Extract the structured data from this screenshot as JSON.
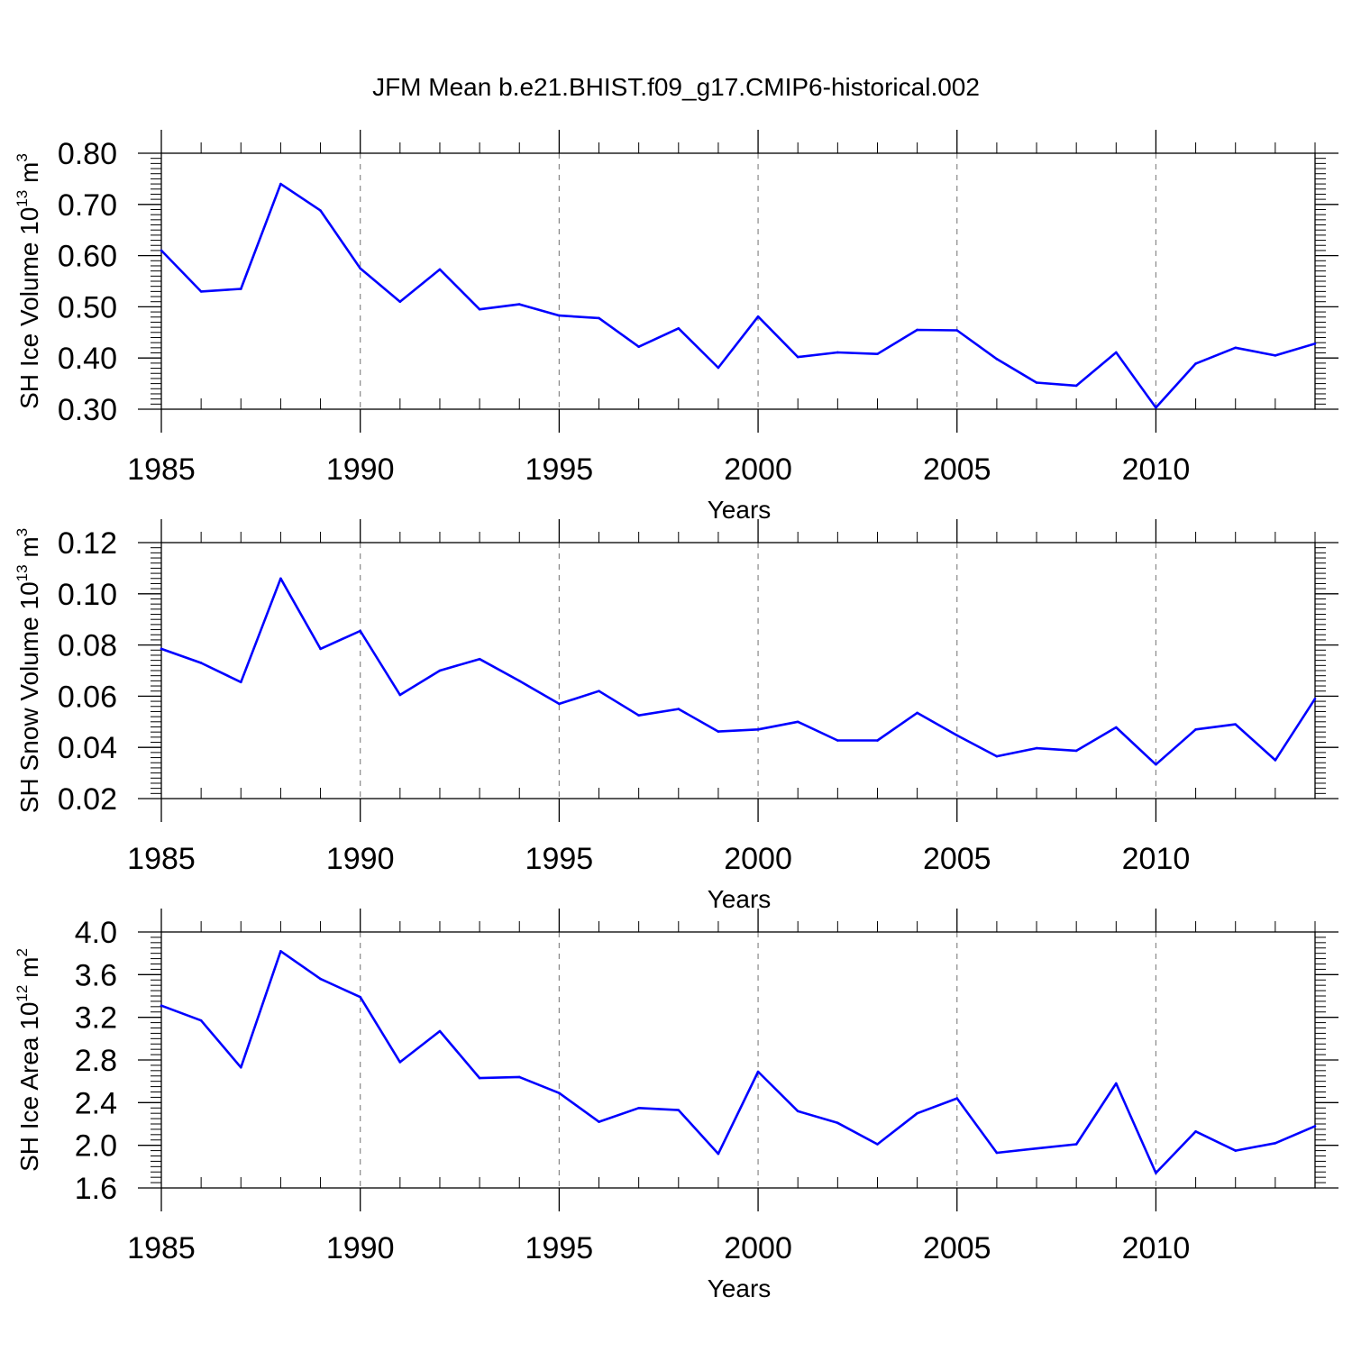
{
  "title": "JFM Mean b.e21.BHIST.f09_g17.CMIP6-historical.002",
  "chart_data": [
    {
      "type": "line",
      "name": "sh-ice-volume",
      "xlabel": "Years",
      "ylabel": {
        "prefix": "SH Ice Volume 10",
        "exp": "13",
        "unit": " m",
        "unit_exp": "3"
      },
      "xlim": [
        1985,
        2014
      ],
      "ylim": [
        0.3,
        0.8
      ],
      "xticks": [
        "1985",
        "1990",
        "1995",
        "2000",
        "2005",
        "2010"
      ],
      "yticks": [
        "0.30",
        "0.40",
        "0.50",
        "0.60",
        "0.70",
        "0.80"
      ],
      "x": [
        1985,
        1986,
        1987,
        1988,
        1989,
        1990,
        1991,
        1992,
        1993,
        1994,
        1995,
        1996,
        1997,
        1998,
        1999,
        2000,
        2001,
        2002,
        2003,
        2004,
        2005,
        2006,
        2007,
        2008,
        2009,
        2010,
        2011,
        2012,
        2013,
        2014
      ],
      "values": [
        0.61,
        0.53,
        0.535,
        0.74,
        0.688,
        0.575,
        0.51,
        0.573,
        0.495,
        0.505,
        0.483,
        0.478,
        0.422,
        0.458,
        0.381,
        0.481,
        0.402,
        0.411,
        0.408,
        0.455,
        0.454,
        0.398,
        0.352,
        0.346,
        0.411,
        0.303,
        0.389,
        0.42,
        0.405,
        0.428
      ],
      "line_color": "#0000ff",
      "grid": "vertical dashed at major x ticks"
    },
    {
      "type": "line",
      "name": "sh-snow-volume",
      "xlabel": "Years",
      "ylabel": {
        "prefix": "SH Snow Volume 10",
        "exp": "13",
        "unit": " m",
        "unit_exp": "3"
      },
      "xlim": [
        1985,
        2014
      ],
      "ylim": [
        0.02,
        0.12
      ],
      "xticks": [
        "1985",
        "1990",
        "1995",
        "2000",
        "2005",
        "2010"
      ],
      "yticks": [
        "0.02",
        "0.04",
        "0.06",
        "0.08",
        "0.10",
        "0.12"
      ],
      "x": [
        1985,
        1986,
        1987,
        1988,
        1989,
        1990,
        1991,
        1992,
        1993,
        1994,
        1995,
        1996,
        1997,
        1998,
        1999,
        2000,
        2001,
        2002,
        2003,
        2004,
        2005,
        2006,
        2007,
        2008,
        2009,
        2010,
        2011,
        2012,
        2013,
        2014
      ],
      "values": [
        0.0785,
        0.073,
        0.0655,
        0.106,
        0.0785,
        0.0855,
        0.0605,
        0.07,
        0.0745,
        0.066,
        0.057,
        0.062,
        0.0525,
        0.055,
        0.0462,
        0.047,
        0.05,
        0.0427,
        0.0427,
        0.0535,
        0.0447,
        0.0365,
        0.0397,
        0.0387,
        0.0478,
        0.0333,
        0.047,
        0.049,
        0.035,
        0.059
      ],
      "line_color": "#0000ff",
      "grid": "vertical dashed at major x ticks"
    },
    {
      "type": "line",
      "name": "sh-ice-area",
      "xlabel": "Years",
      "ylabel": {
        "prefix": "SH Ice Area 10",
        "exp": "12",
        "unit": " m",
        "unit_exp": "2"
      },
      "xlim": [
        1985,
        2014
      ],
      "ylim": [
        1.6,
        4.0
      ],
      "xticks": [
        "1985",
        "1990",
        "1995",
        "2000",
        "2005",
        "2010"
      ],
      "yticks": [
        "1.6",
        "2.0",
        "2.4",
        "2.8",
        "3.2",
        "3.6",
        "4.0"
      ],
      "x": [
        1985,
        1986,
        1987,
        1988,
        1989,
        1990,
        1991,
        1992,
        1993,
        1994,
        1995,
        1996,
        1997,
        1998,
        1999,
        2000,
        2001,
        2002,
        2003,
        2004,
        2005,
        2006,
        2007,
        2008,
        2009,
        2010,
        2011,
        2012,
        2013,
        2014
      ],
      "values": [
        3.31,
        3.17,
        2.73,
        3.82,
        3.56,
        3.39,
        2.78,
        3.07,
        2.63,
        2.64,
        2.49,
        2.22,
        2.35,
        2.33,
        1.92,
        2.69,
        2.32,
        2.21,
        2.01,
        2.3,
        2.44,
        1.93,
        1.97,
        2.01,
        2.58,
        1.74,
        2.13,
        1.95,
        2.02,
        2.18
      ],
      "line_color": "#0000ff",
      "grid": "vertical dashed at major x ticks"
    }
  ]
}
